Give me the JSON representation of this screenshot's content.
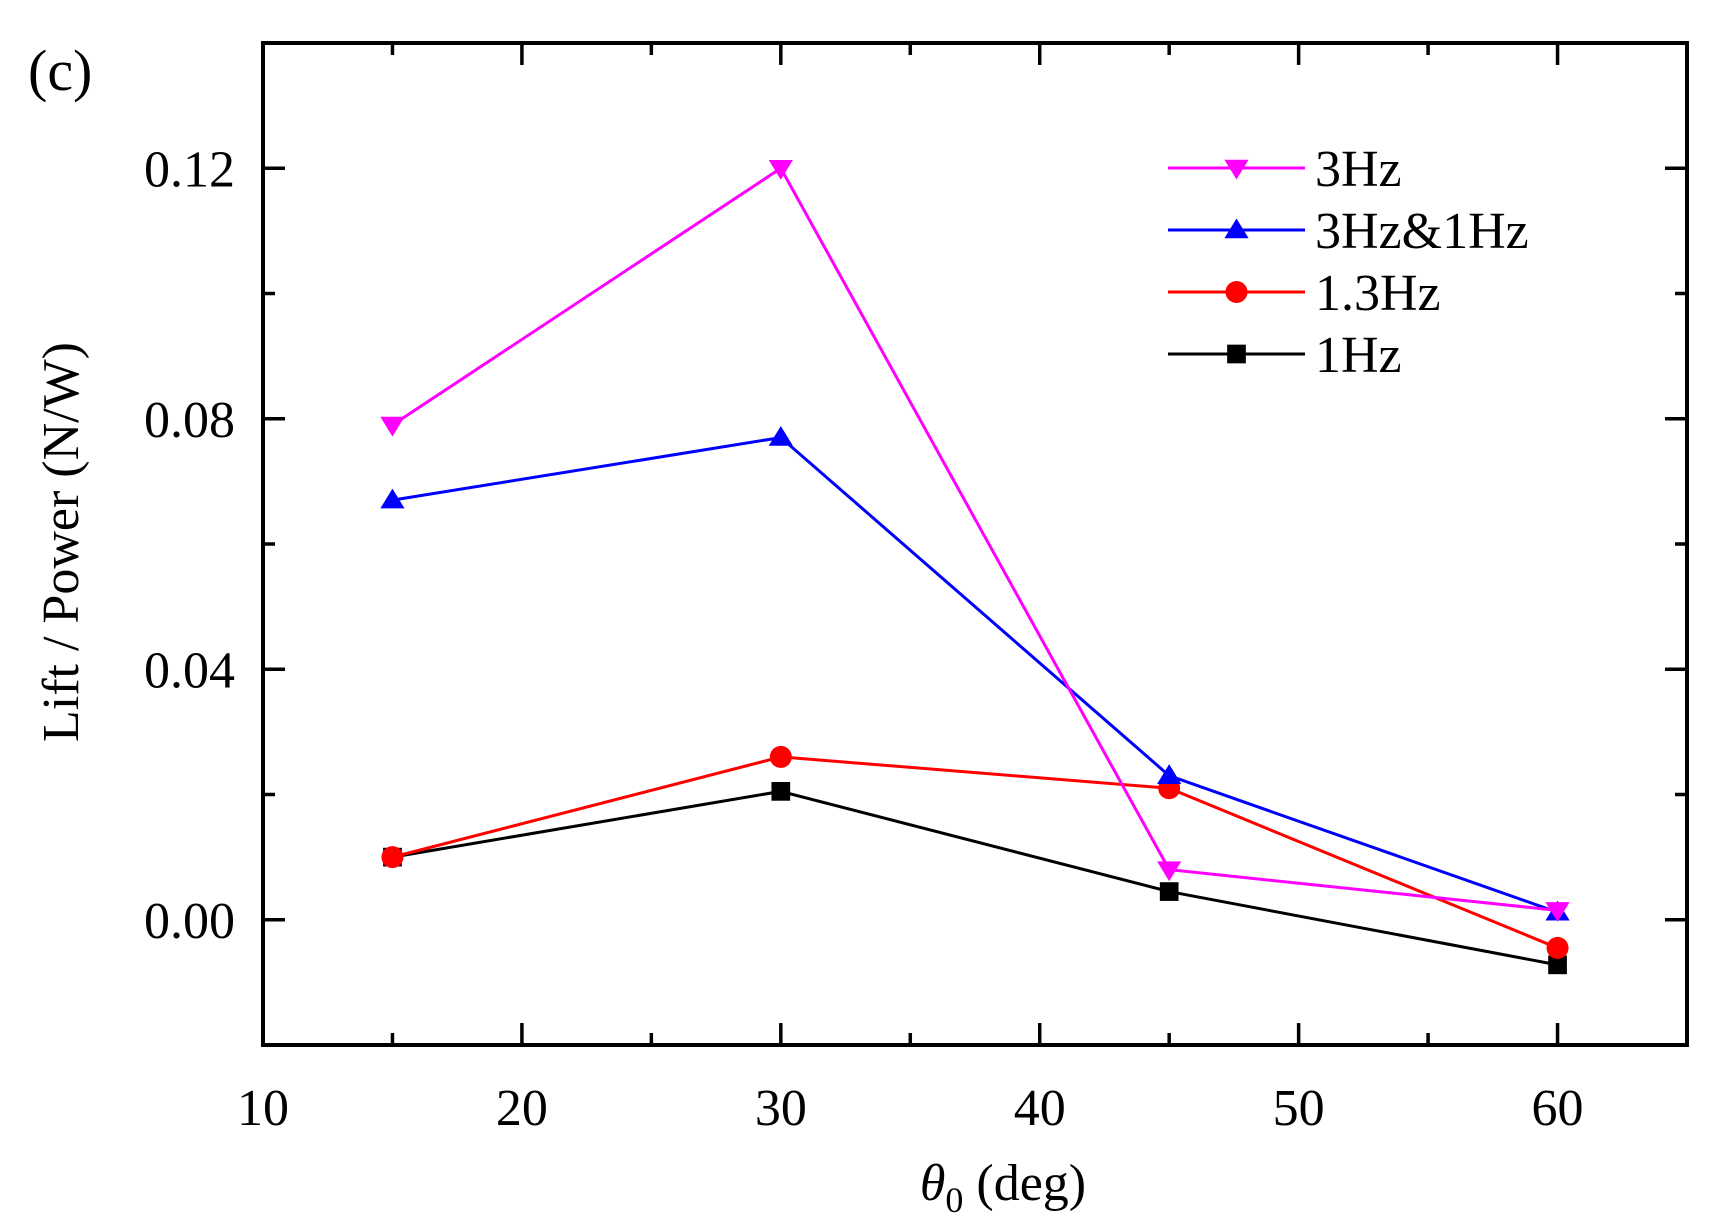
{
  "chart_data": {
    "type": "line",
    "panel_label": "(c)",
    "title": "",
    "xlabel_symbol": "θ",
    "xlabel_subscript": "0",
    "xlabel_rest": " (deg)",
    "ylabel": "Lift / Power (N/W)",
    "xlim": [
      10,
      65
    ],
    "ylim": [
      -0.02,
      0.14
    ],
    "x_ticks": [
      10,
      20,
      30,
      40,
      50,
      60
    ],
    "x_tick_labels": [
      "10",
      "20",
      "30",
      "40",
      "50",
      "60"
    ],
    "x_minor_ticks": [
      15,
      25,
      35,
      45,
      55
    ],
    "y_ticks": [
      0.0,
      0.04,
      0.08,
      0.12
    ],
    "y_tick_labels": [
      "0.00",
      "0.04",
      "0.08",
      "0.12"
    ],
    "y_minor_ticks": [
      0.02,
      0.06,
      0.1
    ],
    "grid": false,
    "legend_position": "top-right",
    "x": [
      15,
      30,
      45,
      60
    ],
    "series": [
      {
        "name": "3Hz",
        "color": "#ff00ff",
        "marker": "triangle-down",
        "values": [
          0.079,
          0.12,
          0.008,
          0.0015
        ]
      },
      {
        "name": "3Hz&1Hz",
        "color": "#0000ff",
        "marker": "triangle-up",
        "values": [
          0.067,
          0.077,
          0.023,
          0.0012
        ]
      },
      {
        "name": "1.3Hz",
        "color": "#ff0000",
        "marker": "circle",
        "values": [
          0.01,
          0.026,
          0.021,
          -0.0045
        ]
      },
      {
        "name": "1Hz",
        "color": "#000000",
        "marker": "square",
        "values": [
          0.01,
          0.0205,
          0.0045,
          -0.0072
        ]
      }
    ]
  }
}
